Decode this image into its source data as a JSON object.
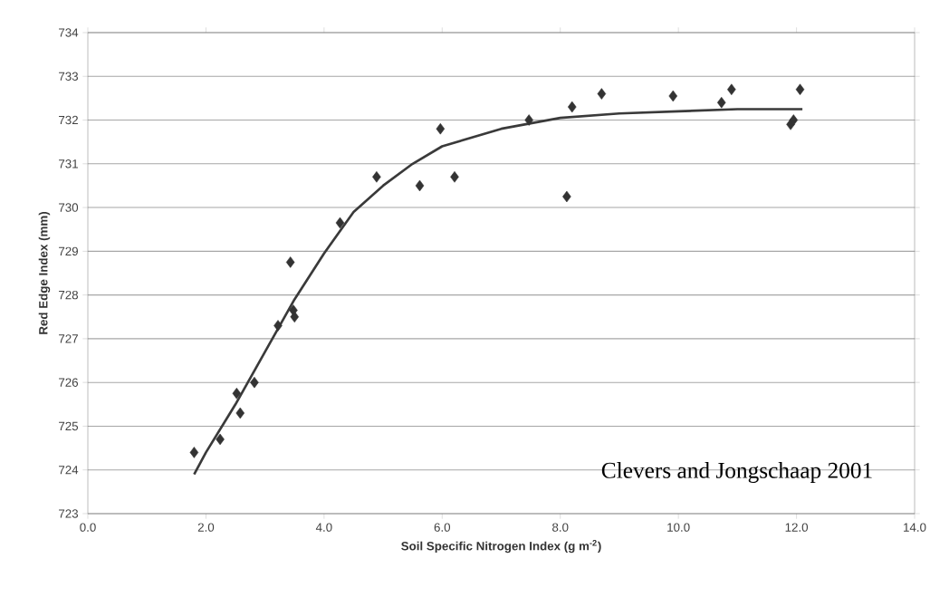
{
  "chart_data": {
    "type": "scatter",
    "xlabel": "Soil Specific Nitrogen Index (g m$^{-2}$)",
    "ylabel": "Red Edge Index (mm)",
    "xlim": [
      0,
      14
    ],
    "ylim": [
      723,
      734
    ],
    "xticks": [
      {
        "value": 0,
        "label": "0.0"
      },
      {
        "value": 2,
        "label": "2.0"
      },
      {
        "value": 4,
        "label": "4.0"
      },
      {
        "value": 6,
        "label": "6.0"
      },
      {
        "value": 8,
        "label": "8.0"
      },
      {
        "value": 10,
        "label": "10.0"
      },
      {
        "value": 12,
        "label": "12.0"
      },
      {
        "value": 14,
        "label": "14.0"
      }
    ],
    "yticks": [
      723,
      724,
      725,
      726,
      727,
      728,
      729,
      730,
      731,
      732,
      733,
      734
    ],
    "grid": "y",
    "annotations": [
      "Clevers and Jongschaap 2001"
    ],
    "series": [
      {
        "marker": "diamond",
        "color": "#333333",
        "x": [
          1.8,
          2.24,
          2.52,
          2.58,
          2.82,
          3.22,
          3.43,
          3.48,
          3.5,
          4.27,
          4.89,
          5.62,
          5.97,
          6.21,
          7.47,
          8.11,
          8.2,
          8.7,
          9.91,
          10.73,
          10.9,
          11.9,
          11.95,
          12.06
        ],
        "values": [
          724.4,
          724.7,
          725.75,
          725.3,
          726.0,
          727.3,
          728.75,
          727.65,
          727.5,
          729.65,
          730.7,
          730.5,
          731.8,
          730.7,
          732.0,
          730.25,
          732.3,
          732.6,
          732.55,
          732.4,
          732.7,
          731.9,
          732.0,
          732.7
        ]
      },
      {
        "type": "line",
        "marker": "none",
        "color": "#3a3a3a",
        "x": [
          1.8,
          2.0,
          2.5,
          3.0,
          3.5,
          4.0,
          4.5,
          5.0,
          5.5,
          6.0,
          7.0,
          8.0,
          9.0,
          10.0,
          11.0,
          12.1
        ],
        "values": [
          723.9,
          724.4,
          725.5,
          726.7,
          727.9,
          728.95,
          729.9,
          730.5,
          731.0,
          731.4,
          731.8,
          732.05,
          732.15,
          732.2,
          732.25,
          732.25
        ]
      }
    ]
  }
}
